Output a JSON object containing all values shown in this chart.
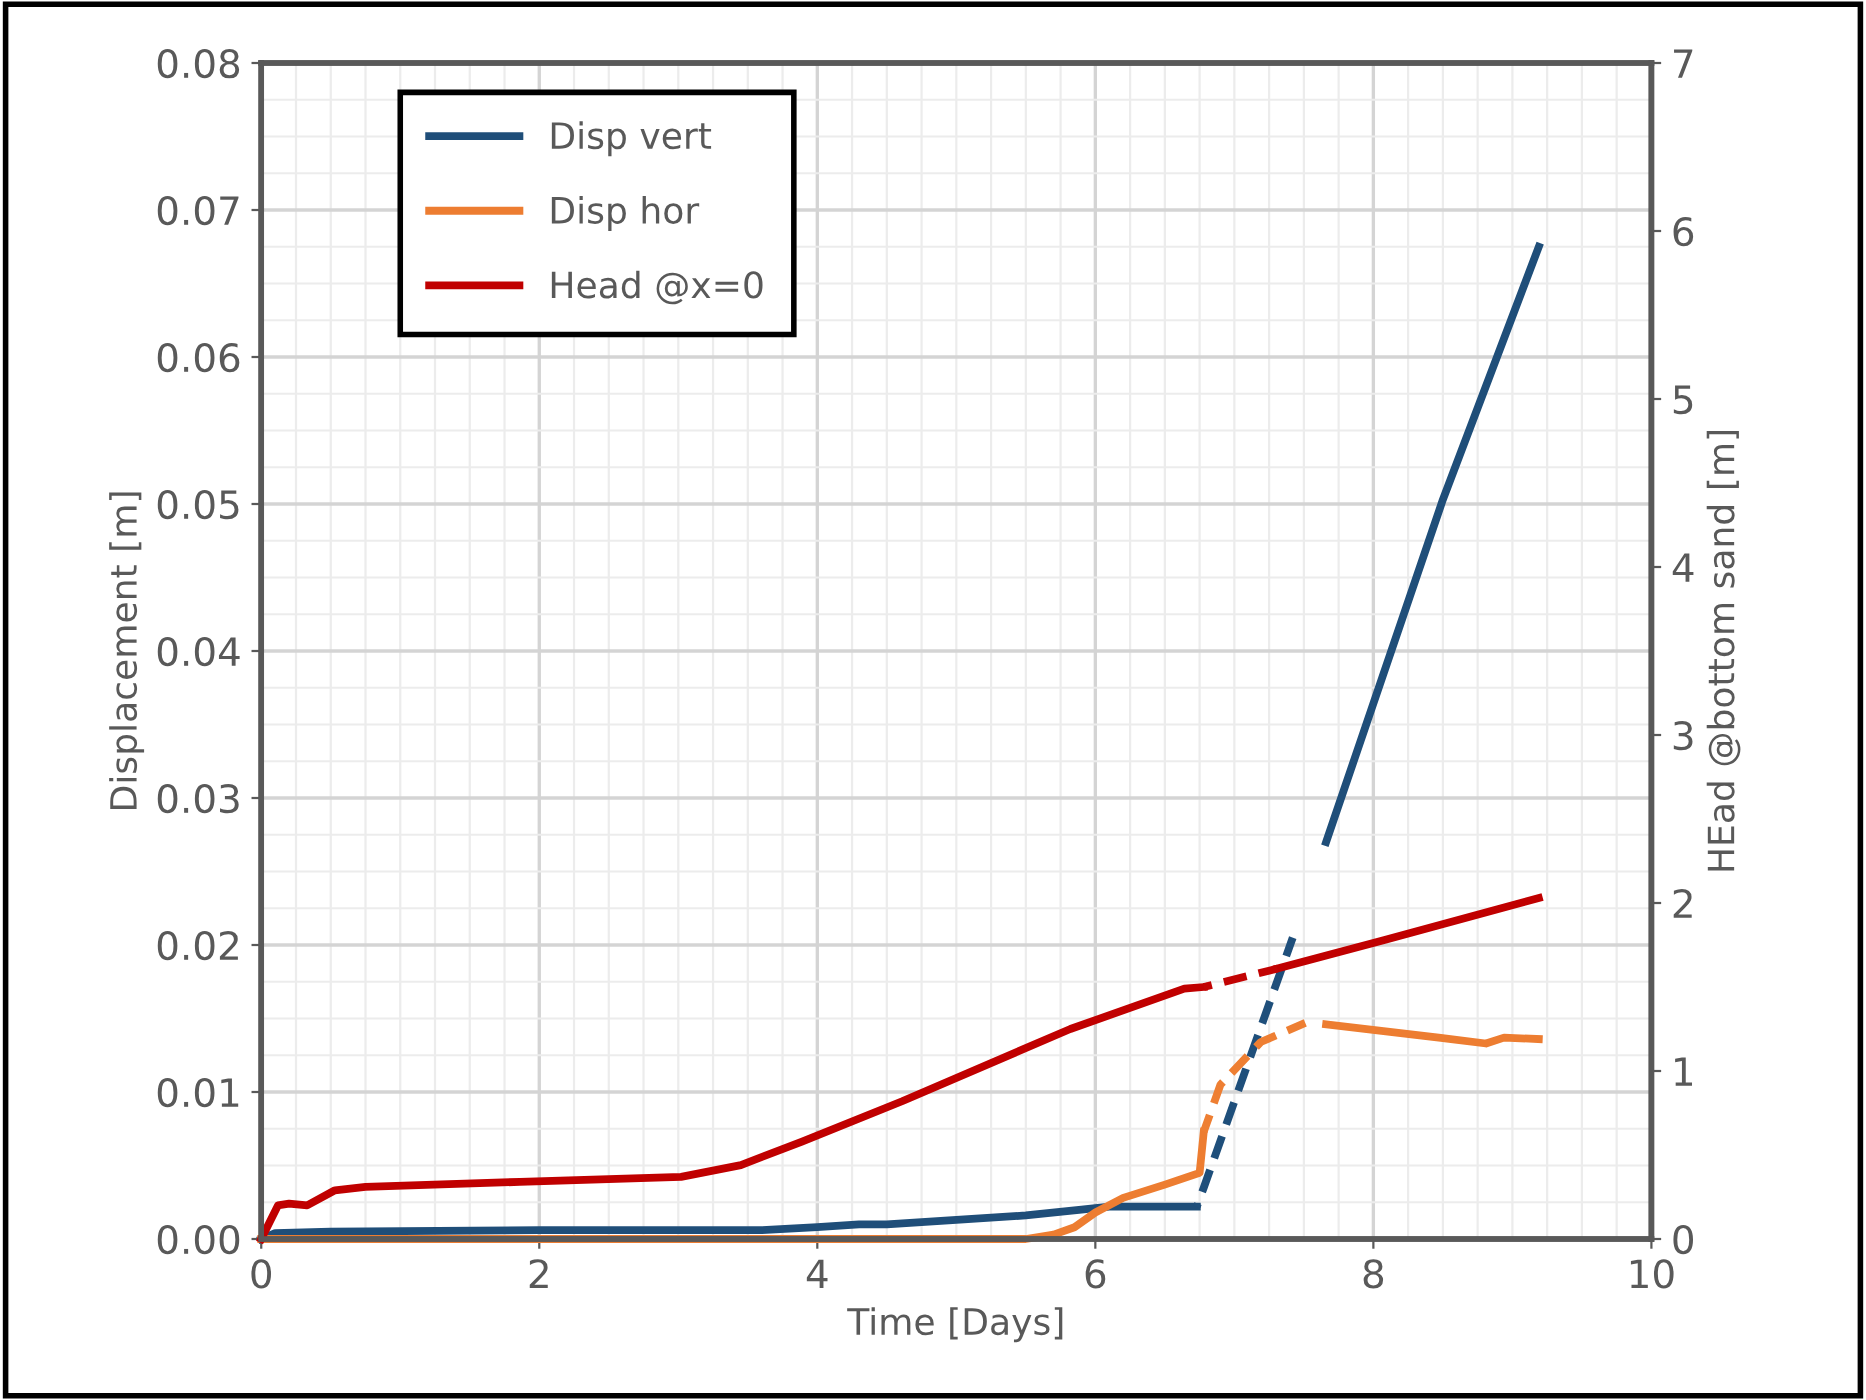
{
  "chart_data": {
    "type": "line",
    "xlabel": "Time [Days]",
    "ylabel": "Displacement [m]",
    "y2label": "HEad @bottom sand [m]",
    "xlim": [
      0,
      10
    ],
    "xticks": [
      0,
      2,
      4,
      6,
      8,
      10
    ],
    "ylim": [
      0,
      0.08
    ],
    "yticks": [
      {
        "value": 0,
        "label": "0.00"
      },
      {
        "value": 0.01,
        "label": "0.01"
      },
      {
        "value": 0.02,
        "label": "0.02"
      },
      {
        "value": 0.03,
        "label": "0.03"
      },
      {
        "value": 0.04,
        "label": "0.04"
      },
      {
        "value": 0.05,
        "label": "0.05"
      },
      {
        "value": 0.06,
        "label": "0.06"
      },
      {
        "value": 0.07,
        "label": "0.07"
      },
      {
        "value": 0.08,
        "label": "0.08"
      }
    ],
    "y2lim": [
      0,
      7
    ],
    "y2ticks": [
      0,
      1,
      2,
      3,
      4,
      5,
      6,
      7
    ],
    "grid": true,
    "legend": "top left",
    "marker": "none",
    "series": [
      {
        "name": "Disp vert",
        "color": "#1f4e79",
        "line_style": "solid",
        "x": [
          0,
          0.1,
          0.5,
          2,
          3.6,
          4,
          4.3,
          4.5,
          5,
          5.5,
          5.9,
          6.1,
          6.3,
          6.73,
          7.2,
          7.66,
          8.5,
          9.19
        ],
        "values": [
          0,
          0.0004,
          0.0005,
          0.0006,
          0.0006,
          0.0008,
          0.001,
          0.001,
          0.0013,
          0.0016,
          0.002,
          0.0022,
          0.0022,
          0.0022,
          null,
          0.027,
          0.0503,
          0.0675
        ]
      },
      {
        "name": "Disp hor",
        "color": "#ed7d31",
        "line_style": "solid",
        "x": [
          0,
          5.5,
          5.7,
          5.85,
          6.0,
          6.2,
          6.5,
          6.75,
          6.78,
          7.6,
          7.66,
          8.47,
          8.81,
          8.94,
          9.19
        ],
        "values": [
          0,
          0,
          0.0003,
          0.0008,
          0.0018,
          0.0028,
          0.0037,
          0.0045,
          0.0073,
          null,
          0.0146,
          0.0137,
          0.0133,
          0.0137,
          0.0136
        ]
      },
      {
        "name": "Head @x=0",
        "color": "#c00000",
        "line_style": "solid",
        "axis": "y2",
        "x": [
          0,
          0.12,
          0.2,
          0.33,
          0.53,
          0.75,
          1.86,
          3.02,
          3.45,
          3.89,
          4.61,
          5.82,
          6.64,
          6.78,
          7.0,
          7.31,
          8.08,
          9.19
        ],
        "values": [
          0,
          0.2,
          0.21,
          0.2,
          0.29,
          0.31,
          0.34,
          0.37,
          0.44,
          0.58,
          0.82,
          1.25,
          1.49,
          1.5,
          null,
          1.61,
          1.78,
          2.03
        ]
      },
      {
        "color": "#1f4f7b",
        "line_style": "dashed",
        "x": [
          6.73,
          6.78,
          7.42
        ],
        "values": [
          0.0022,
          0.0035,
          0.0205
        ]
      },
      {
        "color": "#ee7f33",
        "line_style": "dashed",
        "x": [
          6.78,
          6.9,
          7.19,
          7.51
        ],
        "values": [
          0.0073,
          0.0105,
          0.0134,
          0.0147
        ]
      },
      {
        "color": "#c20303",
        "line_style": "dashed",
        "axis": "y2",
        "x": [
          6.78,
          7.31
        ],
        "values": [
          1.5,
          1.61
        ]
      }
    ]
  }
}
